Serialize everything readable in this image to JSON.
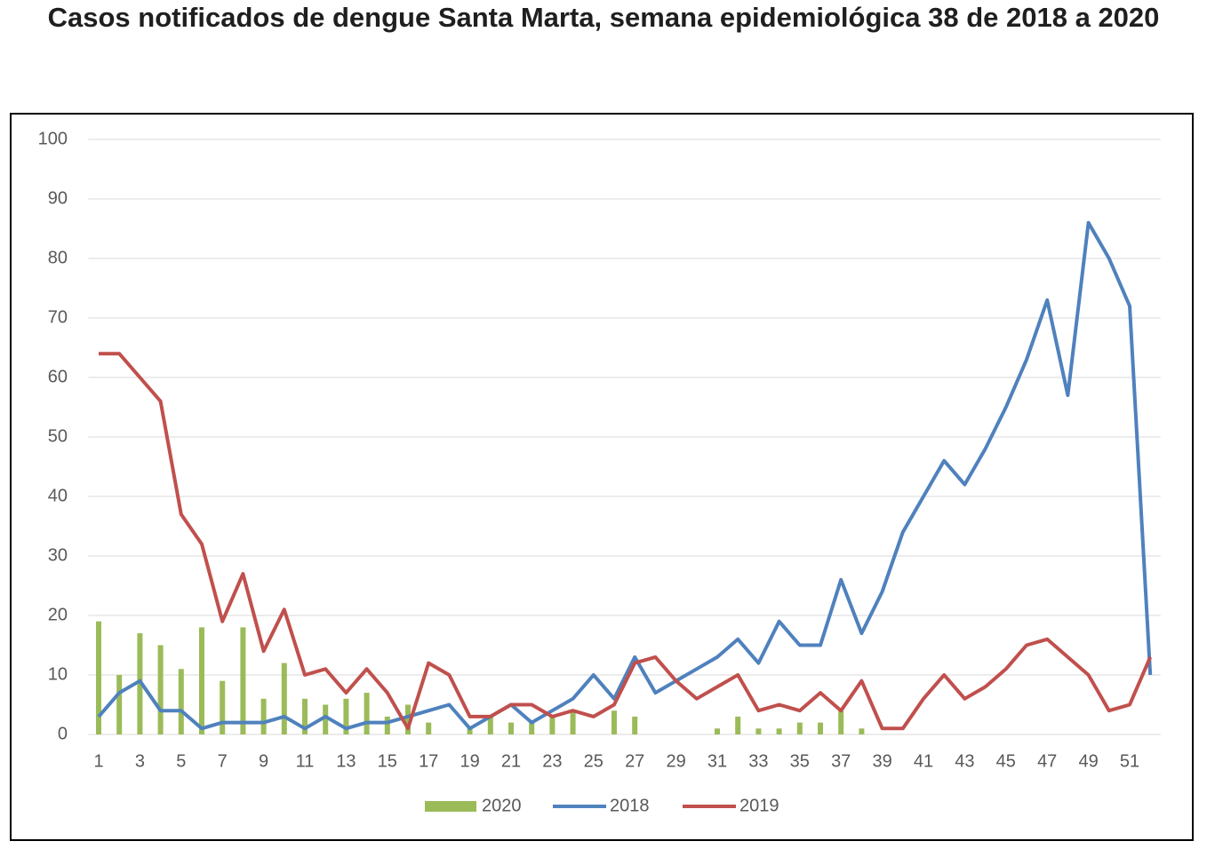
{
  "chart_data": {
    "type": "bar-line",
    "title": "Casos notificados de dengue Santa Marta, semana epidemiológica 38 de 2018 a 2020",
    "categories": [
      1,
      null,
      3,
      null,
      5,
      null,
      7,
      null,
      9,
      null,
      11,
      null,
      13,
      null,
      15,
      null,
      17,
      null,
      19,
      null,
      21,
      null,
      23,
      null,
      25,
      null,
      27,
      null,
      29,
      null,
      31,
      null,
      33,
      null,
      35,
      null,
      37,
      null,
      39,
      null,
      41,
      null,
      43,
      null,
      45,
      null,
      47,
      null,
      49,
      null,
      51,
      null
    ],
    "series": [
      {
        "name": "2020",
        "type": "bar",
        "color": "#9bbb59",
        "values": [
          19,
          10,
          17,
          15,
          11,
          18,
          9,
          18,
          6,
          12,
          6,
          5,
          6,
          7,
          3,
          5,
          2,
          0,
          1,
          3,
          2,
          2,
          3,
          4,
          0,
          4,
          3,
          0,
          0,
          0,
          1,
          3,
          1,
          1,
          2,
          2,
          4,
          1,
          null,
          null,
          null,
          null,
          null,
          null,
          null,
          null,
          null,
          null,
          null,
          null,
          null,
          null
        ]
      },
      {
        "name": "2018",
        "type": "line",
        "color": "#4f81bd",
        "values": [
          3,
          7,
          9,
          4,
          4,
          1,
          2,
          2,
          2,
          3,
          1,
          3,
          1,
          2,
          2,
          3,
          4,
          5,
          1,
          3,
          5,
          2,
          4,
          6,
          10,
          6,
          13,
          7,
          9,
          11,
          13,
          16,
          12,
          19,
          15,
          15,
          26,
          17,
          24,
          34,
          40,
          46,
          42,
          48,
          55,
          63,
          73,
          57,
          86,
          80,
          72,
          10
        ]
      },
      {
        "name": "2019",
        "type": "line",
        "color": "#c0504d",
        "values": [
          64,
          64,
          60,
          56,
          37,
          32,
          19,
          27,
          14,
          21,
          10,
          11,
          7,
          11,
          7,
          1,
          12,
          10,
          3,
          3,
          5,
          5,
          3,
          4,
          3,
          5,
          12,
          13,
          9,
          6,
          8,
          10,
          4,
          5,
          4,
          7,
          4,
          9,
          1,
          1,
          6,
          10,
          6,
          8,
          11,
          15,
          16,
          13,
          10,
          4,
          5,
          13
        ]
      }
    ],
    "ylim": [
      0,
      100
    ],
    "yticks": [
      0,
      10,
      20,
      30,
      40,
      50,
      60,
      70,
      80,
      90,
      100
    ],
    "grid": true,
    "legend": "bottom"
  }
}
